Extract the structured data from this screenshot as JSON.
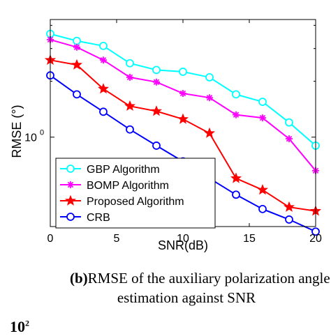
{
  "chart_data": {
    "type": "line",
    "title": "",
    "xlabel": "SNR(dB)",
    "ylabel": "RMSE (°)",
    "x": [
      0,
      2,
      4,
      6,
      8,
      10,
      12,
      14,
      16,
      18,
      20
    ],
    "xlim": [
      0,
      20
    ],
    "ylim": [
      0.33,
      4.3
    ],
    "yscale": "log",
    "xticks": [
      0,
      5,
      10,
      15,
      20
    ],
    "ytick_label": {
      "base": "10",
      "exp": "0"
    },
    "grid": false,
    "legend_position": "bottom-left",
    "series": [
      {
        "name": "GBP Algorithm",
        "color": "#00ffff",
        "marker": "circle",
        "values": [
          3.6,
          3.3,
          3.1,
          2.5,
          2.3,
          2.25,
          2.1,
          1.7,
          1.55,
          1.2,
          0.9
        ]
      },
      {
        "name": "BOMP Algorithm",
        "color": "#ff00ff",
        "marker": "asterisk",
        "values": [
          3.35,
          3.05,
          2.6,
          2.1,
          1.98,
          1.72,
          1.63,
          1.32,
          1.27,
          0.98,
          0.66
        ]
      },
      {
        "name": "Proposed Algorithm",
        "color": "#ff0000",
        "marker": "star",
        "values": [
          2.6,
          2.45,
          1.82,
          1.47,
          1.38,
          1.25,
          1.05,
          0.6,
          0.52,
          0.42,
          0.4
        ]
      },
      {
        "name": "CRB",
        "color": "#0000ff",
        "marker": "circle",
        "values": [
          2.15,
          1.7,
          1.37,
          1.1,
          0.9,
          0.74,
          0.6,
          0.49,
          0.41,
          0.36,
          0.31
        ]
      }
    ]
  },
  "caption": {
    "label": "(b)",
    "line1": "RMSE of the auxiliary polarization angle",
    "line2": "estimation against SNR"
  },
  "fragment": {
    "base": "10",
    "exp": "2"
  }
}
